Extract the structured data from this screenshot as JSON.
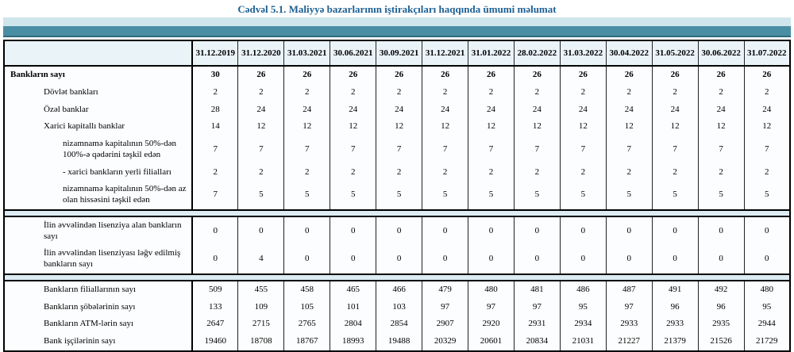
{
  "page": {
    "title": "Cədvəl 5.1. Maliyyə bazarlarının iştirakçıları haqqında ümumi məlumat"
  },
  "banner": {
    "light_color": "#cfe5ec",
    "teal_color": "#4a8ea3"
  },
  "table": {
    "corner_label": "",
    "columns": [
      "31.12.2019",
      "31.12.2020",
      "31.03.2021",
      "30.06.2021",
      "30.09.2021",
      "31.12.2021",
      "31.01.2022",
      "28.02.2022",
      "31.03.2022",
      "30.04.2022",
      "31.05.2022",
      "30.06.2022",
      "31.07.2022"
    ],
    "sections": [
      {
        "rows": [
          {
            "label": "Bankların sayı",
            "indent": 0,
            "bold": true,
            "values": [
              30,
              26,
              26,
              26,
              26,
              26,
              26,
              26,
              26,
              26,
              26,
              26,
              26
            ]
          },
          {
            "label": "Dövlət bankları",
            "indent": 1,
            "bold": false,
            "values": [
              2,
              2,
              2,
              2,
              2,
              2,
              2,
              2,
              2,
              2,
              2,
              2,
              2
            ]
          },
          {
            "label": "Özəl banklar",
            "indent": 1,
            "bold": false,
            "values": [
              28,
              24,
              24,
              24,
              24,
              24,
              24,
              24,
              24,
              24,
              24,
              24,
              24
            ]
          },
          {
            "label": "Xarici kapitallı banklar",
            "indent": 1,
            "bold": false,
            "values": [
              14,
              12,
              12,
              12,
              12,
              12,
              12,
              12,
              12,
              12,
              12,
              12,
              12
            ]
          },
          {
            "label": "nizamnamə kapitalının 50%-dən 100%-ə qədərini təşkil edən",
            "indent": 2,
            "bold": false,
            "values": [
              7,
              7,
              7,
              7,
              7,
              7,
              7,
              7,
              7,
              7,
              7,
              7,
              7
            ]
          },
          {
            "label": "-  xarici bankların yerli filialları",
            "indent": 2,
            "bold": false,
            "values": [
              2,
              2,
              2,
              2,
              2,
              2,
              2,
              2,
              2,
              2,
              2,
              2,
              2
            ]
          },
          {
            "label": "nizamnamə kapitalının 50%-dən az olan hissəsini  təşkil edən",
            "indent": 2,
            "bold": false,
            "values": [
              7,
              5,
              5,
              5,
              5,
              5,
              5,
              5,
              5,
              5,
              5,
              5,
              5
            ]
          }
        ]
      },
      {
        "rows": [
          {
            "label": "İlin əvvəlindən lisenziya alan bankların sayı",
            "indent": 1,
            "bold": false,
            "tall": true,
            "values": [
              0,
              0,
              0,
              0,
              0,
              0,
              0,
              0,
              0,
              0,
              0,
              0,
              0
            ]
          },
          {
            "label": "İlin əvvəlindən lisenziyası ləğv edilmiş bankların sayı",
            "indent": 1,
            "bold": false,
            "tall": true,
            "values": [
              0,
              4,
              0,
              0,
              0,
              0,
              0,
              0,
              0,
              0,
              0,
              0,
              0
            ]
          }
        ]
      },
      {
        "rows": [
          {
            "label": "Bankların filiallarının sayı",
            "indent": 1,
            "bold": false,
            "values": [
              509,
              455,
              458,
              465,
              466,
              479,
              480,
              481,
              486,
              487,
              491,
              492,
              480
            ]
          },
          {
            "label": "Bankların şöbələrinin sayı",
            "indent": 1,
            "bold": false,
            "values": [
              133,
              109,
              105,
              101,
              103,
              97,
              97,
              97,
              95,
              97,
              96,
              96,
              95
            ]
          },
          {
            "label": "Bankların ATM-lərin sayı",
            "indent": 1,
            "bold": false,
            "values": [
              2647,
              2715,
              2765,
              2804,
              2854,
              2907,
              2920,
              2931,
              2934,
              2933,
              2933,
              2935,
              2944
            ]
          },
          {
            "label": "Bank işçilərinin sayı",
            "indent": 1,
            "bold": false,
            "values": [
              19460,
              18708,
              18767,
              18993,
              19488,
              20329,
              20601,
              20834,
              21031,
              21227,
              21379,
              21526,
              21729
            ]
          }
        ]
      }
    ]
  }
}
